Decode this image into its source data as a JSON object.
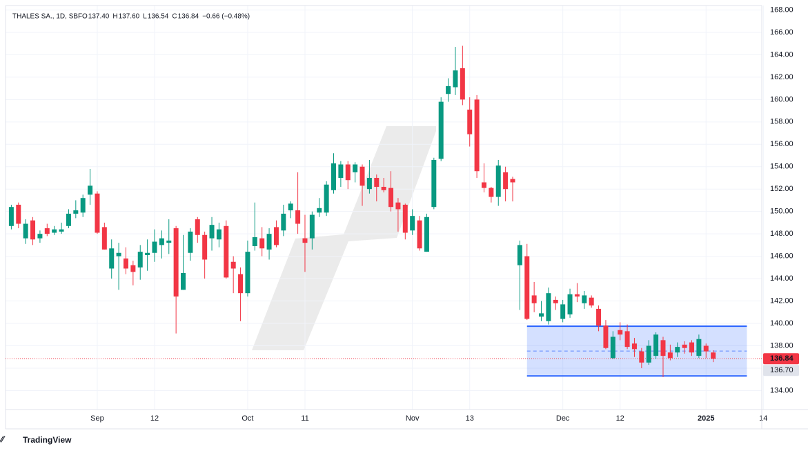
{
  "chart_data": {
    "type": "candlestick",
    "title": "THALES SA., 1D, SBF",
    "ohlc_labels": [
      "O",
      "H",
      "L",
      "C"
    ],
    "ohlc_printed": [
      "137.40",
      "137.60",
      "136.54",
      "136.84"
    ],
    "change": "−0.66 (−0.48%)",
    "footer": "TradingView",
    "up_color": "#089981",
    "down_color": "#f23645",
    "categories": [
      null,
      null,
      null,
      null,
      null,
      null,
      null,
      null,
      null,
      null,
      null,
      null,
      "Sep",
      null,
      null,
      null,
      null,
      null,
      null,
      null,
      "12",
      null,
      null,
      null,
      null,
      null,
      null,
      null,
      null,
      null,
      null,
      null,
      null,
      "Oct",
      null,
      null,
      null,
      null,
      null,
      null,
      null,
      "11",
      null,
      null,
      null,
      null,
      null,
      null,
      null,
      null,
      null,
      null,
      null,
      null,
      null,
      null,
      "Nov",
      null,
      null,
      null,
      null,
      null,
      null,
      null,
      "13",
      null,
      null,
      null,
      null,
      null,
      null,
      null,
      null,
      null,
      null,
      null,
      null,
      "Dec",
      null,
      null,
      null,
      null,
      null,
      null,
      null,
      "12",
      null,
      null,
      null,
      null,
      null,
      null,
      null,
      null,
      null,
      null,
      null,
      "2025",
      null,
      null,
      null,
      null,
      null,
      null,
      null,
      "14"
    ],
    "open": [
      148.7,
      150.6,
      147.6,
      149.2,
      147.6,
      148.5,
      148.1,
      148.2,
      148.7,
      149.8,
      149.9,
      151.5,
      151.6,
      148.6,
      144.9,
      146.0,
      145.8,
      145.2,
      145.0,
      146.1,
      146.3,
      147.0,
      147.2,
      148.5,
      143.0,
      146.3,
      149.3,
      147.9,
      147.6,
      147.5,
      148.7,
      145.5,
      144.4,
      142.7,
      146.9,
      147.6,
      146.6,
      148.6,
      148.3,
      150.1,
      150.1,
      147.6,
      147.6,
      149.9,
      149.9,
      151.9,
      153.0,
      154.2,
      153.5,
      154.0,
      152.0,
      153.0,
      152.2,
      152.1,
      150.8,
      150.6,
      148.3,
      149.2,
      146.4,
      150.4,
      154.7,
      160.5,
      161.1,
      162.8,
      159.1,
      160.0,
      152.6,
      152.1,
      151.3,
      153.5,
      152.9,
      145.2,
      146.0,
      142.5,
      140.6,
      140.2,
      142.1,
      140.4,
      140.8,
      142.6,
      141.8,
      142.3,
      141.3,
      139.8,
      136.9,
      139.4,
      139.3,
      138.2,
      137.5,
      136.5,
      137.1,
      138.5,
      137.4,
      137.4,
      138.1,
      138.3,
      137.1,
      138.0,
      137.4,
      null,
      null,
      null,
      null,
      null,
      null,
      null
    ],
    "high": [
      150.6,
      150.8,
      149.3,
      149.5,
      148.3,
      148.9,
      148.7,
      149.0,
      150.2,
      151.0,
      151.5,
      153.8,
      151.8,
      149.0,
      147.5,
      147.2,
      146.8,
      145.6,
      147.0,
      147.5,
      148.4,
      148.3,
      149.3,
      148.7,
      147.9,
      148.5,
      149.5,
      148.2,
      149.5,
      149.0,
      149.2,
      146.0,
      145.0,
      147.4,
      150.8,
      148.6,
      148.5,
      149.2,
      150.6,
      150.9,
      153.5,
      149.7,
      150.0,
      151.2,
      152.7,
      155.2,
      154.5,
      154.5,
      154.4,
      154.2,
      154.6,
      153.3,
      153.0,
      153.6,
      151.2,
      150.7,
      150.2,
      149.6,
      149.8,
      154.8,
      160.2,
      161.9,
      164.7,
      164.8,
      160.2,
      160.4,
      154.3,
      152.2,
      154.6,
      154.0,
      153.1,
      147.4,
      147.1,
      143.7,
      142.0,
      143.2,
      142.4,
      142.1,
      143.1,
      143.6,
      142.9,
      142.5,
      141.6,
      140.3,
      139.3,
      140.1,
      139.9,
      138.7,
      137.8,
      138.5,
      139.2,
      138.8,
      138.1,
      138.3,
      138.4,
      138.5,
      139.0,
      138.2,
      137.6,
      null,
      null,
      null,
      null,
      null,
      null,
      null
    ],
    "low": [
      148.4,
      148.5,
      147.1,
      147.0,
      147.2,
      147.8,
      147.9,
      148.0,
      148.5,
      149.4,
      149.5,
      150.6,
      148.0,
      146.6,
      144.0,
      143.0,
      144.4,
      143.4,
      143.9,
      144.7,
      145.5,
      145.8,
      146.2,
      139.1,
      143.0,
      145.6,
      147.2,
      144.0,
      146.5,
      146.8,
      144.0,
      142.7,
      140.2,
      142.4,
      146.5,
      146.0,
      145.7,
      146.8,
      147.8,
      149.4,
      148.0,
      144.6,
      146.6,
      149.5,
      149.6,
      151.6,
      152.2,
      152.0,
      152.6,
      150.5,
      151.6,
      150.9,
      151.7,
      150.0,
      148.2,
      147.5,
      147.9,
      146.5,
      146.4,
      150.2,
      154.5,
      159.8,
      160.4,
      159.5,
      155.8,
      153.0,
      151.7,
      150.8,
      150.5,
      150.9,
      150.9,
      141.2,
      140.3,
      141.0,
      140.2,
      139.9,
      141.2,
      140.1,
      140.5,
      141.9,
      141.3,
      141.4,
      139.3,
      137.7,
      136.8,
      138.5,
      137.7,
      137.0,
      136.0,
      136.3,
      136.8,
      135.2,
      136.7,
      137.0,
      137.3,
      137.1,
      136.9,
      136.9,
      136.54,
      null,
      null,
      null,
      null,
      null,
      null,
      null
    ],
    "close": [
      150.4,
      148.9,
      148.9,
      147.5,
      148.0,
      148.0,
      148.4,
      148.4,
      149.8,
      150.1,
      151.2,
      152.3,
      148.1,
      146.6,
      146.7,
      146.3,
      144.9,
      144.6,
      146.4,
      146.3,
      147.3,
      147.6,
      147.4,
      142.4,
      144.5,
      148.2,
      147.9,
      145.7,
      148.8,
      148.4,
      144.1,
      144.9,
      142.7,
      146.4,
      147.7,
      146.7,
      148.0,
      147.0,
      149.8,
      150.7,
      148.9,
      147.2,
      149.7,
      150.3,
      152.4,
      154.3,
      154.2,
      152.8,
      154.2,
      152.3,
      153.0,
      152.2,
      151.9,
      150.4,
      150.2,
      148.1,
      149.6,
      146.7,
      149.5,
      154.6,
      159.8,
      161.2,
      162.6,
      160.0,
      156.9,
      153.6,
      152.1,
      151.3,
      154.1,
      152.0,
      152.6,
      147.0,
      140.4,
      141.8,
      140.9,
      142.7,
      141.8,
      141.7,
      142.6,
      142.4,
      142.5,
      141.6,
      139.8,
      137.8,
      138.8,
      139.0,
      137.9,
      137.7,
      136.5,
      138.0,
      139.0,
      137.1,
      136.9,
      137.9,
      137.8,
      137.4,
      138.6,
      137.5,
      136.84,
      null,
      null,
      null,
      null,
      null,
      null,
      null
    ],
    "ylim": [
      132.3,
      168.4
    ],
    "yticks": [
      {
        "value": 134,
        "label": "134.00"
      },
      {
        "value": 136,
        "label": "136.00"
      },
      {
        "value": 138,
        "label": "138.00"
      },
      {
        "value": 140,
        "label": "140.00"
      },
      {
        "value": 142,
        "label": "142.00"
      },
      {
        "value": 144,
        "label": "144.00"
      },
      {
        "value": 146,
        "label": "146.00"
      },
      {
        "value": 148,
        "label": "148.00"
      },
      {
        "value": 150,
        "label": "150.00"
      },
      {
        "value": 152,
        "label": "152.00"
      },
      {
        "value": 154,
        "label": "154.00"
      },
      {
        "value": 156,
        "label": "156.00"
      },
      {
        "value": 158,
        "label": "158.00"
      },
      {
        "value": 160,
        "label": "160.00"
      },
      {
        "value": 162,
        "label": "162.00"
      },
      {
        "value": 164,
        "label": "164.00"
      },
      {
        "value": 166,
        "label": "166.00"
      },
      {
        "value": 168,
        "label": "168.00"
      }
    ],
    "grid": true,
    "last_price": {
      "value": 136.84,
      "label": "136.84"
    },
    "price_marker": {
      "value": 136.7,
      "label": "136.70"
    },
    "range_box": {
      "top": 139.75,
      "bottom": 135.3,
      "start": 72,
      "end": 102.7,
      "color": "#2962ff"
    }
  }
}
